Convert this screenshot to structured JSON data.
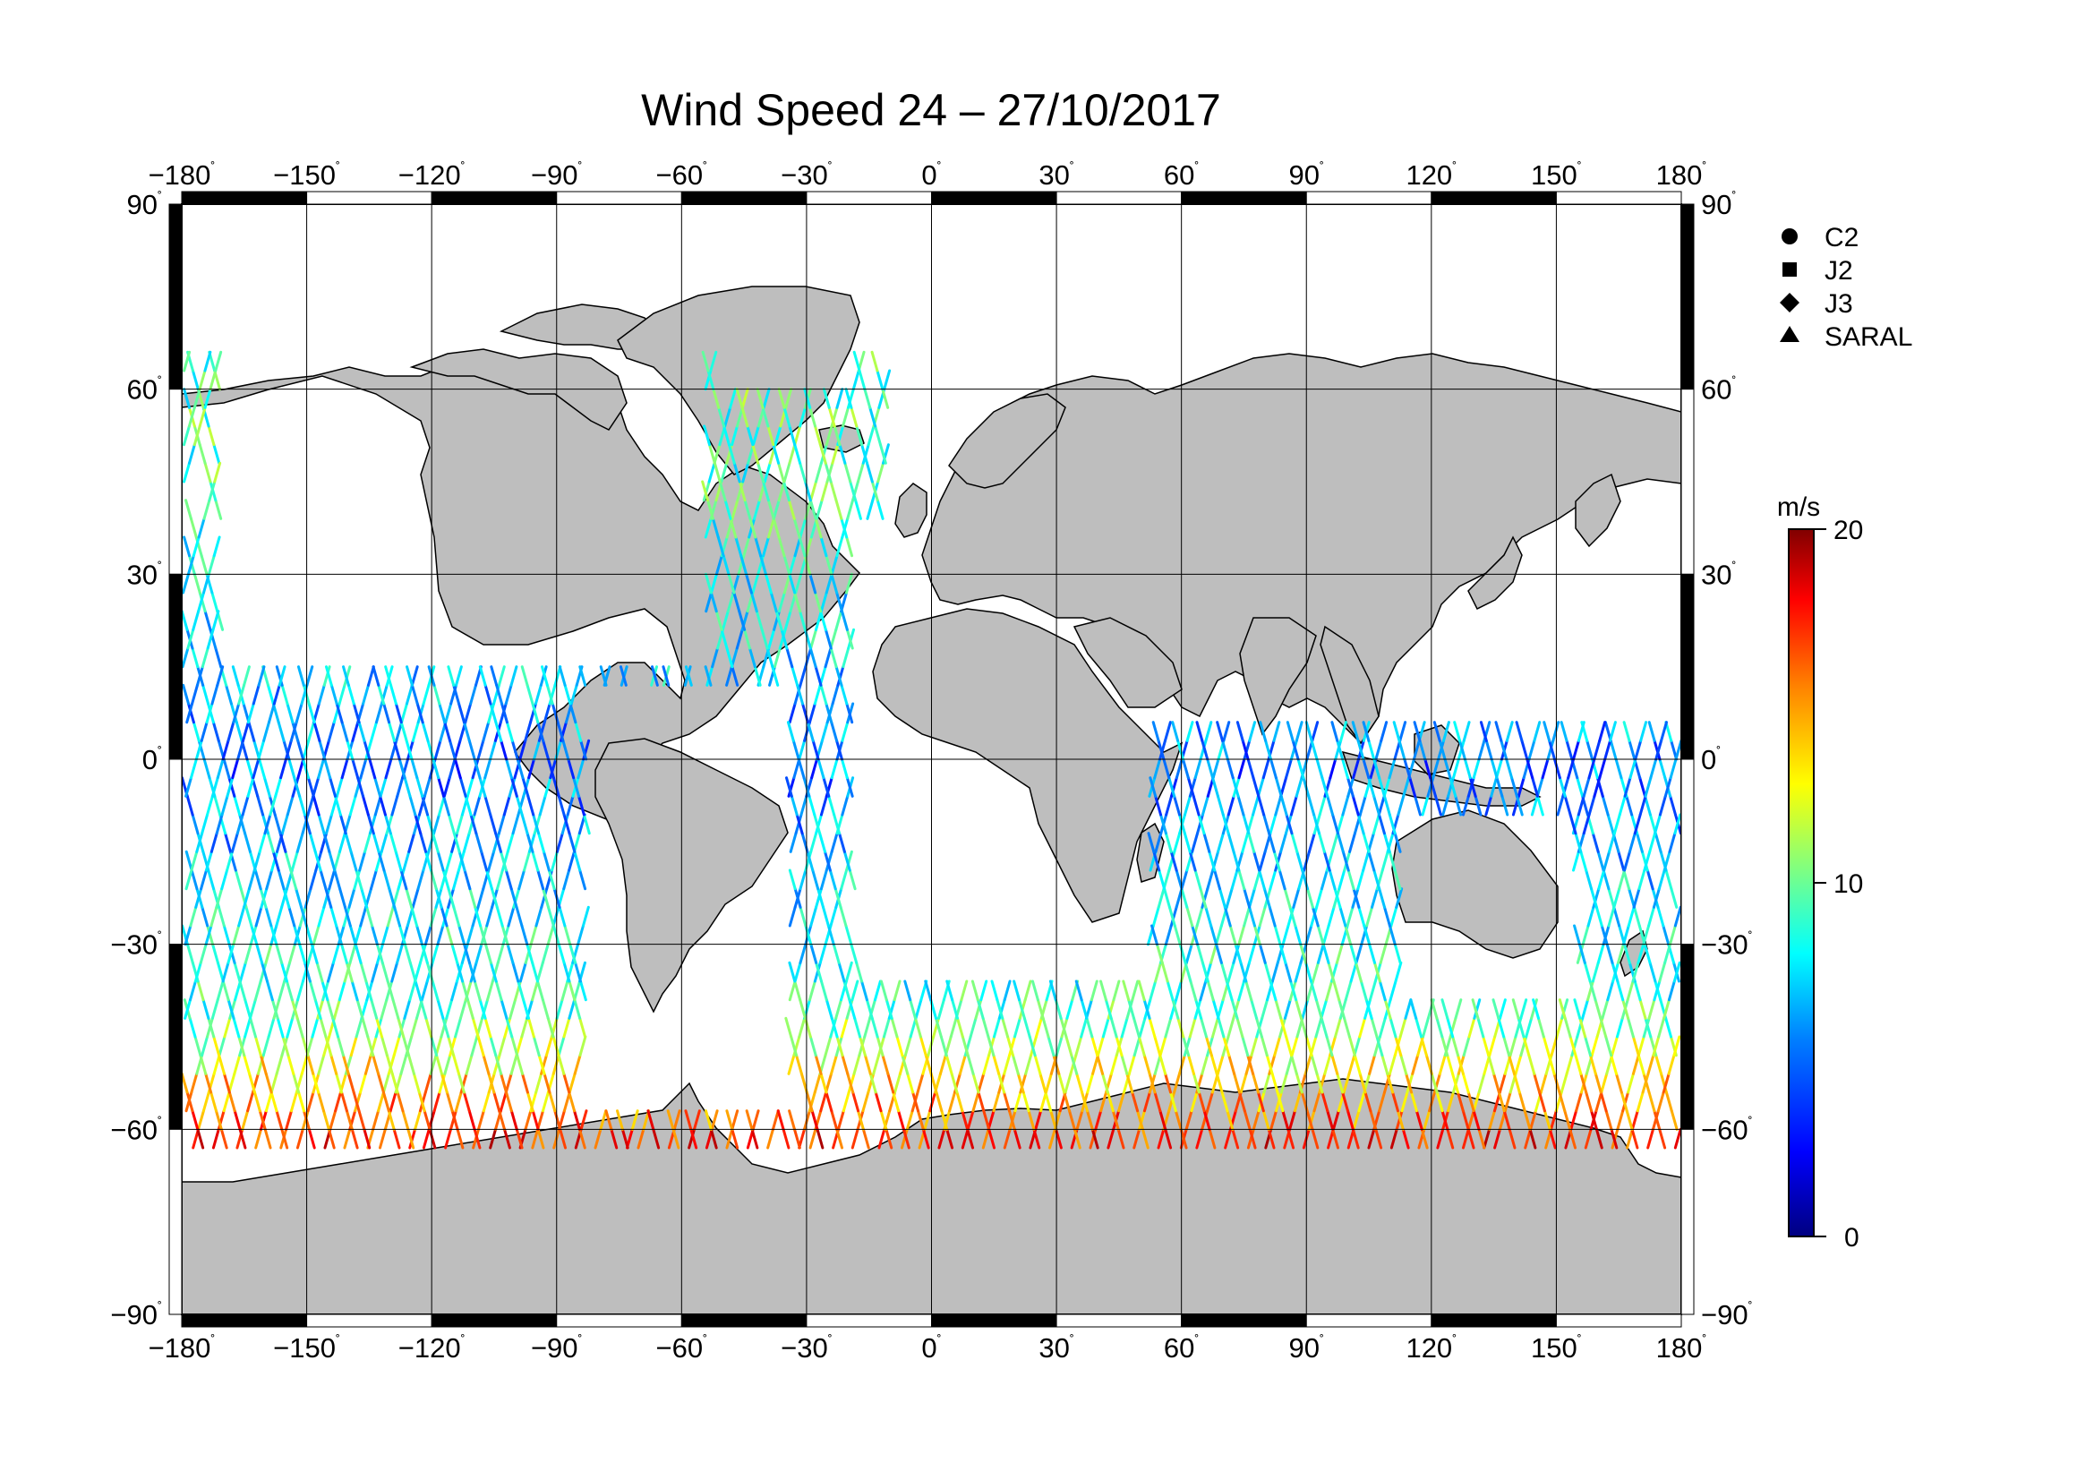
{
  "title": "Wind Speed 24 – 27/10/2017",
  "map": {
    "projection": "equirectangular",
    "lon_range": [
      -180,
      180
    ],
    "lat_range": [
      -90,
      90
    ],
    "grid": true,
    "land_color": "#bebebe",
    "ocean_color": "#ffffff",
    "frame_color": "#000000"
  },
  "axes": {
    "lon_ticks": [
      {
        "value": -180,
        "label": "−180"
      },
      {
        "value": -150,
        "label": "−150"
      },
      {
        "value": -120,
        "label": "−120"
      },
      {
        "value": -90,
        "label": "−90"
      },
      {
        "value": -60,
        "label": "−60"
      },
      {
        "value": -30,
        "label": "−30"
      },
      {
        "value": 0,
        "label": "0"
      },
      {
        "value": 30,
        "label": "30"
      },
      {
        "value": 60,
        "label": "60"
      },
      {
        "value": 90,
        "label": "90"
      },
      {
        "value": 120,
        "label": "120"
      },
      {
        "value": 150,
        "label": "150"
      },
      {
        "value": 180,
        "label": "180"
      }
    ],
    "lat_ticks": [
      {
        "value": 90,
        "label": "90"
      },
      {
        "value": 60,
        "label": "60"
      },
      {
        "value": 30,
        "label": "30"
      },
      {
        "value": 0,
        "label": "0"
      },
      {
        "value": -30,
        "label": "−30"
      },
      {
        "value": -60,
        "label": "−60"
      },
      {
        "value": -90,
        "label": "−90"
      }
    ],
    "degree_symbol": "˚"
  },
  "legend": {
    "placement": "right",
    "items": [
      {
        "label": "C2",
        "symbol": "circle"
      },
      {
        "label": "J2",
        "symbol": "square"
      },
      {
        "label": "J3",
        "symbol": "diamond"
      },
      {
        "label": "SARAL",
        "symbol": "triangle"
      }
    ]
  },
  "colorbar": {
    "unit": "m/s",
    "min": 0,
    "max": 20,
    "ticks": [
      {
        "value": 20,
        "label": "20"
      },
      {
        "value": 10,
        "label": "10"
      },
      {
        "value": 0,
        "label": "0"
      }
    ],
    "colors": [
      "#000080",
      "#0000ff",
      "#0080ff",
      "#00ffff",
      "#80ff80",
      "#ffff00",
      "#ff8000",
      "#ff0000",
      "#800000"
    ]
  },
  "chart_data": {
    "type": "scatter",
    "title": "Wind Speed 24 – 27/10/2017",
    "xlabel": "",
    "ylabel": "",
    "xlim": [
      -180,
      180
    ],
    "ylim": [
      -90,
      90
    ],
    "grid": true,
    "legend_placement": "right",
    "colorscale": {
      "unit": "m/s",
      "range": [
        0,
        20
      ]
    },
    "series": [
      {
        "name": "C2",
        "marker": "circle"
      },
      {
        "name": "J2",
        "marker": "square"
      },
      {
        "name": "J3",
        "marker": "diamond"
      },
      {
        "name": "SARAL",
        "marker": "triangle"
      }
    ]
  }
}
